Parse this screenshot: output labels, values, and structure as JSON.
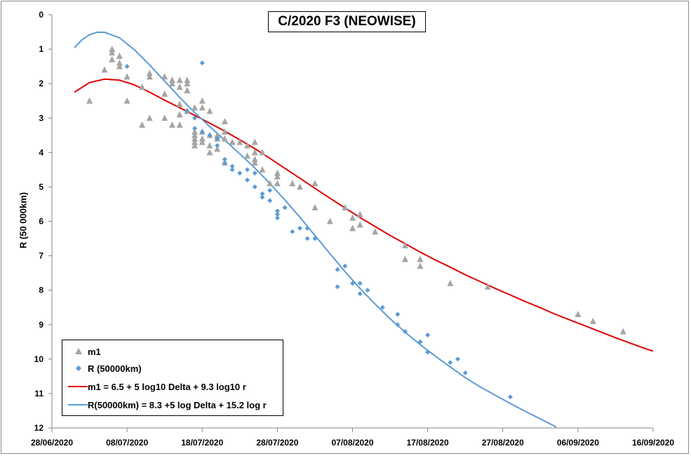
{
  "chart_data": {
    "type": "scatter",
    "title": "C/2020 F3 (NEOWISE)",
    "xlabel": "",
    "ylabel": "R (50 000km)",
    "x_type": "date",
    "xlim": [
      "2020-06-28",
      "2020-09-16"
    ],
    "x_tick_labels": [
      "28/06/2020",
      "08/07/2020",
      "18/07/2020",
      "28/07/2020",
      "07/08/2020",
      "17/08/2020",
      "27/08/2020",
      "06/09/2020",
      "16/09/2020"
    ],
    "ylim": [
      0,
      12
    ],
    "y_inverted": true,
    "y_tick_labels": [
      "0",
      "1",
      "2",
      "3",
      "4",
      "5",
      "6",
      "7",
      "8",
      "9",
      "10",
      "11",
      "12"
    ],
    "grid": false,
    "legend_position": "bottom-left",
    "series": [
      {
        "name": "m1",
        "kind": "scatter",
        "marker": "triangle",
        "color": "#a5a5a5",
        "points": [
          [
            "2020-07-03",
            2.5
          ],
          [
            "2020-07-05",
            1.6
          ],
          [
            "2020-07-06",
            1.3
          ],
          [
            "2020-07-06",
            1.1
          ],
          [
            "2020-07-06",
            1.0
          ],
          [
            "2020-07-07",
            1.5
          ],
          [
            "2020-07-07",
            1.4
          ],
          [
            "2020-07-07",
            1.2
          ],
          [
            "2020-07-08",
            1.8
          ],
          [
            "2020-07-08",
            2.5
          ],
          [
            "2020-07-10",
            2.1
          ],
          [
            "2020-07-10",
            3.2
          ],
          [
            "2020-07-11",
            1.7
          ],
          [
            "2020-07-11",
            1.8
          ],
          [
            "2020-07-11",
            3.0
          ],
          [
            "2020-07-13",
            1.8
          ],
          [
            "2020-07-13",
            2.3
          ],
          [
            "2020-07-13",
            3.0
          ],
          [
            "2020-07-14",
            2.0
          ],
          [
            "2020-07-14",
            1.9
          ],
          [
            "2020-07-14",
            3.2
          ],
          [
            "2020-07-15",
            2.1
          ],
          [
            "2020-07-15",
            1.9
          ],
          [
            "2020-07-15",
            2.6
          ],
          [
            "2020-07-15",
            2.9
          ],
          [
            "2020-07-15",
            3.2
          ],
          [
            "2020-07-16",
            2.2
          ],
          [
            "2020-07-16",
            1.9
          ],
          [
            "2020-07-16",
            2.8
          ],
          [
            "2020-07-16",
            2.0
          ],
          [
            "2020-07-17",
            2.7
          ],
          [
            "2020-07-17",
            3.4
          ],
          [
            "2020-07-17",
            3.5
          ],
          [
            "2020-07-17",
            3.6
          ],
          [
            "2020-07-17",
            3.7
          ],
          [
            "2020-07-17",
            3.8
          ],
          [
            "2020-07-18",
            2.5
          ],
          [
            "2020-07-18",
            2.7
          ],
          [
            "2020-07-18",
            3.4
          ],
          [
            "2020-07-18",
            3.6
          ],
          [
            "2020-07-18",
            3.7
          ],
          [
            "2020-07-19",
            2.8
          ],
          [
            "2020-07-19",
            3.5
          ],
          [
            "2020-07-19",
            3.8
          ],
          [
            "2020-07-19",
            4.0
          ],
          [
            "2020-07-20",
            3.5
          ],
          [
            "2020-07-20",
            3.6
          ],
          [
            "2020-07-20",
            3.9
          ],
          [
            "2020-07-21",
            3.1
          ],
          [
            "2020-07-21",
            3.4
          ],
          [
            "2020-07-21",
            3.6
          ],
          [
            "2020-07-21",
            4.3
          ],
          [
            "2020-07-22",
            3.7
          ],
          [
            "2020-07-23",
            3.7
          ],
          [
            "2020-07-24",
            3.8
          ],
          [
            "2020-07-24",
            4.1
          ],
          [
            "2020-07-25",
            3.7
          ],
          [
            "2020-07-25",
            4.0
          ],
          [
            "2020-07-25",
            4.2
          ],
          [
            "2020-07-25",
            4.3
          ],
          [
            "2020-07-26",
            4.0
          ],
          [
            "2020-07-26",
            4.5
          ],
          [
            "2020-07-27",
            4.9
          ],
          [
            "2020-07-28",
            4.6
          ],
          [
            "2020-07-28",
            4.7
          ],
          [
            "2020-07-28",
            4.9
          ],
          [
            "2020-07-30",
            4.9
          ],
          [
            "2020-07-31",
            5.0
          ],
          [
            "2020-08-02",
            4.9
          ],
          [
            "2020-08-02",
            5.6
          ],
          [
            "2020-08-04",
            6.0
          ],
          [
            "2020-08-06",
            5.6
          ],
          [
            "2020-08-07",
            5.9
          ],
          [
            "2020-08-07",
            6.2
          ],
          [
            "2020-08-08",
            5.8
          ],
          [
            "2020-08-08",
            6.1
          ],
          [
            "2020-08-10",
            6.3
          ],
          [
            "2020-08-14",
            6.7
          ],
          [
            "2020-08-14",
            7.1
          ],
          [
            "2020-08-16",
            7.1
          ],
          [
            "2020-08-16",
            7.3
          ],
          [
            "2020-08-20",
            7.8
          ],
          [
            "2020-08-25",
            7.9
          ],
          [
            "2020-09-06",
            8.7
          ],
          [
            "2020-09-08",
            8.9
          ],
          [
            "2020-09-12",
            9.2
          ]
        ]
      },
      {
        "name": "R (50000km)",
        "kind": "scatter",
        "marker": "diamond",
        "color": "#5b9bd5",
        "points": [
          [
            "2020-07-08",
            1.5
          ],
          [
            "2020-07-18",
            1.4
          ],
          [
            "2020-07-16",
            2.8
          ],
          [
            "2020-07-17",
            3.0
          ],
          [
            "2020-07-17",
            3.3
          ],
          [
            "2020-07-18",
            3.4
          ],
          [
            "2020-07-19",
            3.5
          ],
          [
            "2020-07-20",
            3.6
          ],
          [
            "2020-07-20",
            3.8
          ],
          [
            "2020-07-21",
            4.2
          ],
          [
            "2020-07-21",
            4.3
          ],
          [
            "2020-07-22",
            4.4
          ],
          [
            "2020-07-22",
            4.5
          ],
          [
            "2020-07-23",
            4.6
          ],
          [
            "2020-07-24",
            4.5
          ],
          [
            "2020-07-24",
            4.8
          ],
          [
            "2020-07-25",
            4.6
          ],
          [
            "2020-07-25",
            5.0
          ],
          [
            "2020-07-26",
            5.2
          ],
          [
            "2020-07-26",
            5.3
          ],
          [
            "2020-07-27",
            5.1
          ],
          [
            "2020-07-27",
            5.4
          ],
          [
            "2020-07-28",
            5.7
          ],
          [
            "2020-07-28",
            5.8
          ],
          [
            "2020-07-28",
            5.9
          ],
          [
            "2020-07-29",
            5.6
          ],
          [
            "2020-07-30",
            6.3
          ],
          [
            "2020-07-31",
            6.2
          ],
          [
            "2020-08-01",
            6.2
          ],
          [
            "2020-08-01",
            6.5
          ],
          [
            "2020-08-02",
            6.5
          ],
          [
            "2020-08-05",
            7.4
          ],
          [
            "2020-08-05",
            7.9
          ],
          [
            "2020-08-06",
            7.3
          ],
          [
            "2020-08-07",
            7.8
          ],
          [
            "2020-08-08",
            8.1
          ],
          [
            "2020-08-08",
            7.8
          ],
          [
            "2020-08-09",
            8.0
          ],
          [
            "2020-08-11",
            8.5
          ],
          [
            "2020-08-13",
            8.7
          ],
          [
            "2020-08-13",
            9.0
          ],
          [
            "2020-08-14",
            9.2
          ],
          [
            "2020-08-16",
            9.5
          ],
          [
            "2020-08-17",
            9.3
          ],
          [
            "2020-08-17",
            9.8
          ],
          [
            "2020-08-20",
            10.1
          ],
          [
            "2020-08-21",
            10.0
          ],
          [
            "2020-08-22",
            10.4
          ],
          [
            "2020-08-28",
            11.1
          ]
        ]
      },
      {
        "name": "m1 = 6.5 + 5 log10 Delta + 9.3 log10 r",
        "kind": "line",
        "color": "#e00000",
        "points": [
          [
            "2020-07-01",
            2.25
          ],
          [
            "2020-07-03",
            1.97
          ],
          [
            "2020-07-05",
            1.87
          ],
          [
            "2020-07-07",
            1.9
          ],
          [
            "2020-07-09",
            2.04
          ],
          [
            "2020-07-11",
            2.25
          ],
          [
            "2020-07-13",
            2.48
          ],
          [
            "2020-07-15",
            2.7
          ],
          [
            "2020-07-17",
            2.92
          ],
          [
            "2020-07-19",
            3.15
          ],
          [
            "2020-07-21",
            3.38
          ],
          [
            "2020-07-23",
            3.63
          ],
          [
            "2020-07-25",
            3.89
          ],
          [
            "2020-07-27",
            4.17
          ],
          [
            "2020-07-29",
            4.46
          ],
          [
            "2020-07-31",
            4.75
          ],
          [
            "2020-08-02",
            5.04
          ],
          [
            "2020-08-04",
            5.33
          ],
          [
            "2020-08-06",
            5.61
          ],
          [
            "2020-08-08",
            5.89
          ],
          [
            "2020-08-10",
            6.15
          ],
          [
            "2020-08-12",
            6.41
          ],
          [
            "2020-08-14",
            6.65
          ],
          [
            "2020-08-16",
            6.89
          ],
          [
            "2020-08-18",
            7.12
          ],
          [
            "2020-08-20",
            7.33
          ],
          [
            "2020-08-22",
            7.55
          ],
          [
            "2020-08-24",
            7.75
          ],
          [
            "2020-08-26",
            7.95
          ],
          [
            "2020-08-28",
            8.14
          ],
          [
            "2020-08-30",
            8.33
          ],
          [
            "2020-09-01",
            8.51
          ],
          [
            "2020-09-03",
            8.7
          ],
          [
            "2020-09-05",
            8.87
          ],
          [
            "2020-09-07",
            9.04
          ],
          [
            "2020-09-09",
            9.21
          ],
          [
            "2020-09-11",
            9.38
          ],
          [
            "2020-09-13",
            9.54
          ],
          [
            "2020-09-15",
            9.7
          ],
          [
            "2020-09-16",
            9.77
          ]
        ]
      },
      {
        "name": "R(50000km) = 8.3 +5 log Delta + 15.2 log r",
        "kind": "line",
        "color": "#5b9bd5",
        "points": [
          [
            "2020-07-01",
            0.96
          ],
          [
            "2020-07-02",
            0.73
          ],
          [
            "2020-07-03",
            0.58
          ],
          [
            "2020-07-04",
            0.51
          ],
          [
            "2020-07-05",
            0.51
          ],
          [
            "2020-07-07",
            0.67
          ],
          [
            "2020-07-09",
            1.02
          ],
          [
            "2020-07-11",
            1.46
          ],
          [
            "2020-07-13",
            1.93
          ],
          [
            "2020-07-15",
            2.4
          ],
          [
            "2020-07-17",
            2.84
          ],
          [
            "2020-07-19",
            3.25
          ],
          [
            "2020-07-21",
            3.64
          ],
          [
            "2020-07-23",
            4.04
          ],
          [
            "2020-07-25",
            4.45
          ],
          [
            "2020-07-27",
            4.9
          ],
          [
            "2020-07-29",
            5.38
          ],
          [
            "2020-07-31",
            5.88
          ],
          [
            "2020-08-02",
            6.41
          ],
          [
            "2020-08-04",
            6.94
          ],
          [
            "2020-08-06",
            7.46
          ],
          [
            "2020-08-08",
            7.95
          ],
          [
            "2020-08-10",
            8.4
          ],
          [
            "2020-08-12",
            8.83
          ],
          [
            "2020-08-14",
            9.22
          ],
          [
            "2020-08-16",
            9.58
          ],
          [
            "2020-08-18",
            9.91
          ],
          [
            "2020-08-20",
            10.23
          ],
          [
            "2020-08-22",
            10.54
          ],
          [
            "2020-08-24",
            10.81
          ],
          [
            "2020-08-26",
            11.05
          ],
          [
            "2020-08-28",
            11.29
          ],
          [
            "2020-08-30",
            11.52
          ],
          [
            "2020-09-01",
            11.74
          ],
          [
            "2020-09-03",
            11.96
          ],
          [
            "2020-09-03",
            12.0
          ]
        ]
      }
    ]
  },
  "legend": {
    "items": [
      {
        "label": "m1",
        "symbol": "triangle",
        "color": "#a5a5a5"
      },
      {
        "label": "R (50000km)",
        "symbol": "diamond",
        "color": "#5b9bd5"
      },
      {
        "label": "m1 = 6.5 + 5 log10 Delta + 9.3 log10 r",
        "symbol": "line",
        "color": "#e00000"
      },
      {
        "label": "R(50000km) = 8.3 +5 log Delta + 15.2 log r",
        "symbol": "line",
        "color": "#5b9bd5"
      }
    ]
  }
}
